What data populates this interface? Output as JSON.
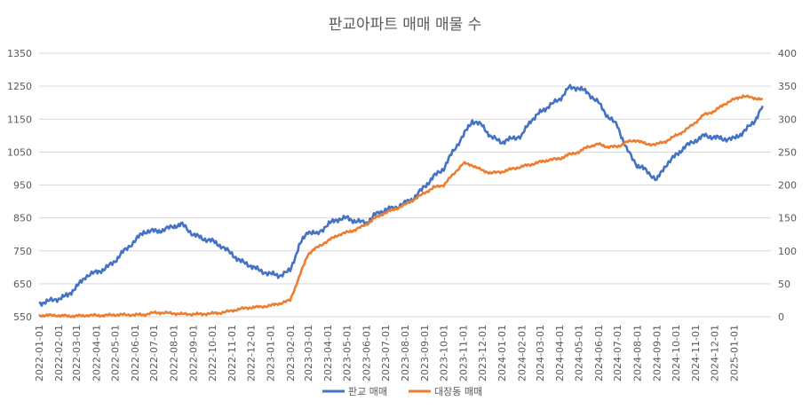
{
  "chart_data": {
    "type": "line",
    "title": "판교아파트 매매 매물 수",
    "xlabel": "",
    "ylabel": "",
    "y_left": {
      "ticks": [
        550,
        650,
        750,
        850,
        950,
        1050,
        1150,
        1250,
        1350
      ],
      "lim": [
        550,
        1350
      ]
    },
    "y_right": {
      "ticks": [
        0,
        50,
        100,
        150,
        200,
        250,
        300,
        350,
        400
      ],
      "lim": [
        0,
        400
      ]
    },
    "grid": true,
    "legend": "bottom",
    "x_ticks": [
      "2022-01-01",
      "2022-02-01",
      "2022-03-01",
      "2022-04-01",
      "2022-05-01",
      "2022-06-01",
      "2022-07-01",
      "2022-08-01",
      "2022-09-01",
      "2022-10-01",
      "2022-11-01",
      "2022-12-01",
      "2023-01-01",
      "2023-02-01",
      "2023-03-01",
      "2023-04-01",
      "2023-05-01",
      "2023-06-01",
      "2023-07-01",
      "2023-08-01",
      "2023-09-01",
      "2023-10-01",
      "2023-11-01",
      "2023-12-01",
      "2024-01-01",
      "2024-02-01",
      "2024-03-01",
      "2024-04-01",
      "2024-05-01",
      "2024-06-01",
      "2024-07-01",
      "2024-08-01",
      "2024-09-01",
      "2024-10-01",
      "2024-11-01",
      "2024-12-01",
      "2025-01-01"
    ],
    "series": [
      {
        "name": "판교 매매",
        "axis": "left",
        "color": "#4472C4",
        "points": [
          [
            "2022-01-01",
            590
          ],
          [
            "2022-01-15",
            597
          ],
          [
            "2022-02-01",
            605
          ],
          [
            "2022-02-15",
            615
          ],
          [
            "2022-03-01",
            640
          ],
          [
            "2022-03-15",
            672
          ],
          [
            "2022-04-01",
            685
          ],
          [
            "2022-04-15",
            695
          ],
          [
            "2022-05-01",
            720
          ],
          [
            "2022-05-15",
            750
          ],
          [
            "2022-06-01",
            780
          ],
          [
            "2022-06-15",
            808
          ],
          [
            "2022-07-01",
            810
          ],
          [
            "2022-07-15",
            812
          ],
          [
            "2022-08-01",
            825
          ],
          [
            "2022-08-15",
            830
          ],
          [
            "2022-09-01",
            800
          ],
          [
            "2022-09-15",
            788
          ],
          [
            "2022-10-01",
            780
          ],
          [
            "2022-10-15",
            765
          ],
          [
            "2022-11-01",
            740
          ],
          [
            "2022-11-15",
            718
          ],
          [
            "2022-12-01",
            705
          ],
          [
            "2022-12-15",
            690
          ],
          [
            "2023-01-01",
            680
          ],
          [
            "2023-01-15",
            675
          ],
          [
            "2023-02-01",
            690
          ],
          [
            "2023-02-15",
            765
          ],
          [
            "2023-03-01",
            810
          ],
          [
            "2023-03-15",
            800
          ],
          [
            "2023-04-01",
            830
          ],
          [
            "2023-04-15",
            845
          ],
          [
            "2023-05-01",
            850
          ],
          [
            "2023-05-15",
            840
          ],
          [
            "2023-06-01",
            835
          ],
          [
            "2023-06-15",
            860
          ],
          [
            "2023-07-01",
            875
          ],
          [
            "2023-07-15",
            880
          ],
          [
            "2023-08-01",
            895
          ],
          [
            "2023-08-15",
            910
          ],
          [
            "2023-09-01",
            945
          ],
          [
            "2023-09-15",
            975
          ],
          [
            "2023-10-01",
            1000
          ],
          [
            "2023-10-15",
            1050
          ],
          [
            "2023-11-01",
            1100
          ],
          [
            "2023-11-15",
            1145
          ],
          [
            "2023-12-01",
            1130
          ],
          [
            "2023-12-15",
            1095
          ],
          [
            "2024-01-01",
            1080
          ],
          [
            "2024-01-15",
            1090
          ],
          [
            "2024-02-01",
            1100
          ],
          [
            "2024-02-15",
            1145
          ],
          [
            "2024-03-01",
            1170
          ],
          [
            "2024-03-15",
            1190
          ],
          [
            "2024-04-01",
            1210
          ],
          [
            "2024-04-15",
            1245
          ],
          [
            "2024-05-01",
            1245
          ],
          [
            "2024-05-15",
            1230
          ],
          [
            "2024-06-01",
            1200
          ],
          [
            "2024-06-15",
            1160
          ],
          [
            "2024-07-01",
            1130
          ],
          [
            "2024-07-15",
            1060
          ],
          [
            "2024-08-01",
            1010
          ],
          [
            "2024-08-15",
            995
          ],
          [
            "2024-09-01",
            965
          ],
          [
            "2024-09-15",
            1010
          ],
          [
            "2024-10-01",
            1040
          ],
          [
            "2024-10-15",
            1065
          ],
          [
            "2024-11-01",
            1085
          ],
          [
            "2024-11-15",
            1100
          ],
          [
            "2024-12-01",
            1095
          ],
          [
            "2024-12-15",
            1090
          ],
          [
            "2025-01-01",
            1090
          ],
          [
            "2025-01-15",
            1110
          ],
          [
            "2025-02-01",
            1140
          ],
          [
            "2025-02-15",
            1190
          ]
        ]
      },
      {
        "name": "대장동 매매",
        "axis": "right",
        "color": "#ED7D31",
        "points": [
          [
            "2022-01-01",
            2
          ],
          [
            "2022-01-15",
            2
          ],
          [
            "2022-02-01",
            2
          ],
          [
            "2022-02-15",
            1
          ],
          [
            "2022-03-01",
            1
          ],
          [
            "2022-03-15",
            2
          ],
          [
            "2022-04-01",
            2
          ],
          [
            "2022-04-15",
            2
          ],
          [
            "2022-05-01",
            3
          ],
          [
            "2022-05-15",
            3
          ],
          [
            "2022-06-01",
            3
          ],
          [
            "2022-06-15",
            3
          ],
          [
            "2022-07-01",
            6
          ],
          [
            "2022-07-15",
            6
          ],
          [
            "2022-08-01",
            5
          ],
          [
            "2022-08-15",
            4
          ],
          [
            "2022-09-01",
            4
          ],
          [
            "2022-09-15",
            4
          ],
          [
            "2022-10-01",
            5
          ],
          [
            "2022-10-15",
            6
          ],
          [
            "2022-11-01",
            9
          ],
          [
            "2022-11-15",
            12
          ],
          [
            "2022-12-01",
            14
          ],
          [
            "2022-12-15",
            15
          ],
          [
            "2023-01-01",
            17
          ],
          [
            "2023-01-15",
            20
          ],
          [
            "2023-02-01",
            25
          ],
          [
            "2023-02-15",
            60
          ],
          [
            "2023-03-01",
            95
          ],
          [
            "2023-03-15",
            105
          ],
          [
            "2023-04-01",
            115
          ],
          [
            "2023-04-15",
            123
          ],
          [
            "2023-05-01",
            128
          ],
          [
            "2023-05-15",
            132
          ],
          [
            "2023-06-01",
            140
          ],
          [
            "2023-06-15",
            150
          ],
          [
            "2023-07-01",
            158
          ],
          [
            "2023-07-15",
            163
          ],
          [
            "2023-08-01",
            170
          ],
          [
            "2023-08-15",
            178
          ],
          [
            "2023-09-01",
            188
          ],
          [
            "2023-09-15",
            196
          ],
          [
            "2023-10-01",
            200
          ],
          [
            "2023-10-15",
            215
          ],
          [
            "2023-11-01",
            233
          ],
          [
            "2023-11-15",
            230
          ],
          [
            "2023-12-01",
            222
          ],
          [
            "2023-12-15",
            218
          ],
          [
            "2024-01-01",
            220
          ],
          [
            "2024-01-15",
            224
          ],
          [
            "2024-02-01",
            228
          ],
          [
            "2024-02-15",
            231
          ],
          [
            "2024-03-01",
            235
          ],
          [
            "2024-03-15",
            238
          ],
          [
            "2024-04-01",
            240
          ],
          [
            "2024-04-15",
            246
          ],
          [
            "2024-05-01",
            250
          ],
          [
            "2024-05-15",
            258
          ],
          [
            "2024-06-01",
            262
          ],
          [
            "2024-06-15",
            258
          ],
          [
            "2024-07-01",
            258
          ],
          [
            "2024-07-15",
            265
          ],
          [
            "2024-08-01",
            268
          ],
          [
            "2024-08-15",
            262
          ],
          [
            "2024-09-01",
            262
          ],
          [
            "2024-09-15",
            266
          ],
          [
            "2024-10-01",
            275
          ],
          [
            "2024-10-15",
            282
          ],
          [
            "2024-11-01",
            295
          ],
          [
            "2024-11-15",
            307
          ],
          [
            "2024-12-01",
            312
          ],
          [
            "2024-12-15",
            322
          ],
          [
            "2025-01-01",
            330
          ],
          [
            "2025-01-15",
            335
          ],
          [
            "2025-02-01",
            332
          ],
          [
            "2025-02-15",
            330
          ]
        ]
      }
    ]
  }
}
